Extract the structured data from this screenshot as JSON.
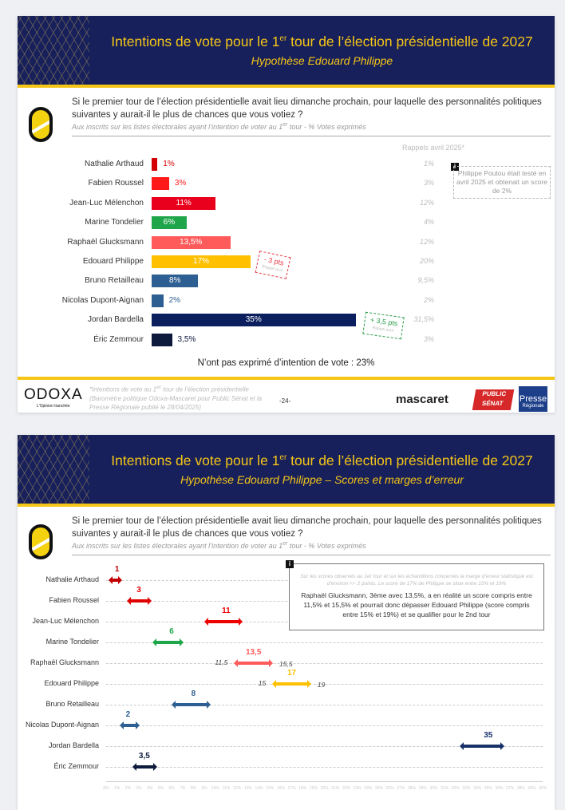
{
  "slide1": {
    "title_pre": "Intentions de vote pour le 1",
    "title_sup": "er",
    "title_post": " tour de l’élection présidentielle de 2027",
    "subtitle": "Hypothèse Edouard Philippe",
    "question": "Si le premier tour de l’élection présidentielle avait lieu dimanche prochain, pour laquelle des personnalités politiques suivantes y aurait-il le plus de chances que vous votiez ?",
    "base_pre": "Aux inscrits sur les listes électorales ayant l’intention de voter au 1",
    "base_sup": "er",
    "base_post": " tour  - % Votes exprimés",
    "rappels_header": "Rappels avril 2025*",
    "info_note": "Philippe Poutou était testé en avril 2025 et obtenait un score de 2%",
    "stamp_down": {
      "text": "- 3 pts",
      "sub": "Rappel avril"
    },
    "stamp_up": {
      "text": "+ 3,5 pts",
      "sub": "Rappel avril"
    },
    "no_intention": "N’ont pas exprimé d’intention de vote : 23%",
    "footnote_pre": "*Intentions de vote au 1",
    "footnote_sup": "er",
    "footnote_post": " tour de l’élection présidentielle (Baromètre politique Odoxa-Mascaret pour Public Sénat et la Presse Régionale publié le 28/04/2025)",
    "page": "-24-"
  },
  "slide2": {
    "title_pre": "Intentions de vote pour le 1",
    "title_sup": "er",
    "title_post": " tour de l’élection présidentielle de 2027",
    "subtitle": "Hypothèse Edouard Philippe – Scores et marges d’erreur",
    "question": "Si le premier tour de l’élection présidentielle avait lieu dimanche prochain, pour laquelle des personnalités politiques suivantes y aurait-il le plus de chances que vous votiez ?",
    "base_pre": "Aux inscrits sur les listes électorales ayant l’intention de voter au 1",
    "base_sup": "er",
    "base_post": " tour  - % Votes exprimés",
    "info_small": "Sur les scores observés au 1er tour et sur les échantillons concernés la marge d’erreur statistique est d’environ +/- 2 points. Le score de 17% de Philippe se situe entre 15% et 19%",
    "info_main": "Raphaël Glucksmann, 3ème avec 13,5%, a en réalité un score compris entre 11,5% et 15,5% et pourrait donc dépasser Edouard Philippe (score compris entre 15% et 19%) et se qualifier pour le 2nd tour"
  },
  "brands": {
    "odoxa": "ODOXA",
    "odoxa_tagline": "L'Opinion tranchée",
    "mascaret": "mascaret",
    "public_senat": "PUBLIC SÉNAT",
    "presse": "Presse",
    "regionale": "Régionale"
  },
  "chart_data": [
    {
      "type": "bar",
      "orientation": "horizontal",
      "unit": "%",
      "categories": [
        "Nathalie Arthaud",
        "Fabien Roussel",
        "Jean-Luc Mélenchon",
        "Marine Tondelier",
        "Raphaël Glucksmann",
        "Edouard Philippe",
        "Bruno Retailleau",
        "Nicolas Dupont-Aignan",
        "Jordan Bardella",
        "Éric Zemmour"
      ],
      "values": [
        1,
        3,
        11,
        6,
        13.5,
        17,
        8,
        2,
        35,
        3.5
      ],
      "labels": [
        "1%",
        "3%",
        "11%",
        "6%",
        "13,5%",
        "17%",
        "8%",
        "2%",
        "35%",
        "3,5%"
      ],
      "rappels_avril_2025": [
        "1%",
        "3%",
        "12%",
        "4%",
        "12%",
        "20%",
        "9,5%",
        "2%",
        "31,5%",
        "3%"
      ],
      "colors": [
        "#d40000",
        "#ff1a1a",
        "#e8001c",
        "#1fa64a",
        "#ff5b5b",
        "#ffc000",
        "#2e5f92",
        "#2e5f92",
        "#0b1f5e",
        "#0d1a3c"
      ]
    },
    {
      "type": "errorbar",
      "unit": "%",
      "xlim": [
        0,
        40
      ],
      "x_ticks": [
        "0%",
        "1%",
        "2%",
        "3%",
        "4%",
        "5%",
        "6%",
        "7%",
        "8%",
        "9%",
        "10%",
        "11%",
        "12%",
        "13%",
        "14%",
        "15%",
        "16%",
        "17%",
        "18%",
        "19%",
        "20%",
        "21%",
        "22%",
        "23%",
        "24%",
        "25%",
        "26%",
        "27%",
        "28%",
        "29%",
        "30%",
        "31%",
        "32%",
        "33%",
        "34%",
        "35%",
        "36%",
        "37%",
        "38%",
        "39%",
        "40%"
      ],
      "categories": [
        "Nathalie Arthaud",
        "Fabien Roussel",
        "Jean-Luc Mélenchon",
        "Marine Tondelier",
        "Raphaël Glucksmann",
        "Edouard Philippe",
        "Bruno Retailleau",
        "Nicolas Dupont-Aignan",
        "Jordan Bardella",
        "Éric Zemmour"
      ],
      "values": [
        1,
        3,
        11,
        6,
        13.5,
        17,
        8,
        2,
        35,
        3.5
      ],
      "labels": [
        "1",
        "3",
        "11",
        "6",
        "13,5",
        "17",
        "8",
        "2",
        "35",
        "3,5"
      ],
      "low": [
        0,
        1.7,
        8.8,
        4,
        11.5,
        15,
        5.8,
        1,
        32.2,
        2.2
      ],
      "high": [
        1.7,
        4.4,
        12.7,
        7.3,
        15.5,
        19,
        9.8,
        3.3,
        36.7,
        4.9
      ],
      "low_labels": [
        "",
        "",
        "",
        "",
        "11,5",
        "15",
        "",
        "",
        "",
        ""
      ],
      "high_labels": [
        "",
        "",
        "",
        "",
        "15,5",
        "19",
        "",
        "",
        "",
        ""
      ],
      "colors": [
        "#c00000",
        "#e00000",
        "#ee0000",
        "#1fa64a",
        "#ff5b5b",
        "#ffc000",
        "#2e5f92",
        "#2e5f92",
        "#17306a",
        "#0d1a3c"
      ]
    }
  ]
}
